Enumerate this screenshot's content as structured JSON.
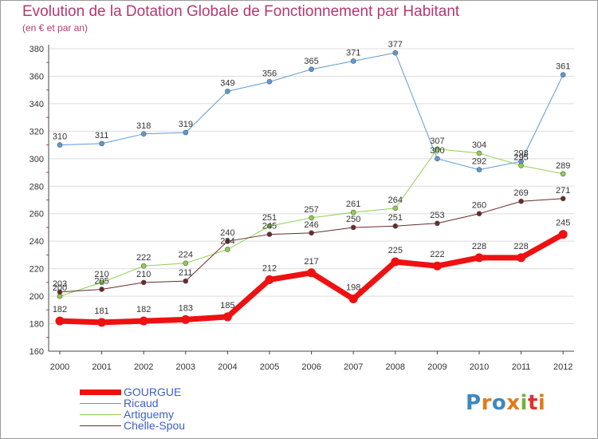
{
  "title": "Evolution de la Dotation Globale de Fonctionnement par Habitant",
  "subtitle": "(en € et par an)",
  "brand": {
    "text": "Proxiti",
    "letter_colors": [
      "#3b88c3",
      "#e07b1a",
      "#3b88c3",
      "#e07b1a",
      "#6fb53a",
      "#e0302a",
      "#e07b1a"
    ]
  },
  "colors": {
    "grid": "#dddddd",
    "axis": "#444444",
    "tick_accent": "#d04040"
  },
  "chart_data": {
    "type": "line",
    "title": "Evolution de la Dotation Globale de Fonctionnement par Habitant",
    "subtitle": "(en € et par an)",
    "xlabel": "",
    "ylabel": "",
    "categories": [
      "2000",
      "2001",
      "2002",
      "2003",
      "2004",
      "2005",
      "2006",
      "2007",
      "2008",
      "2009",
      "2010",
      "2011",
      "2012"
    ],
    "ylim": [
      160,
      380
    ],
    "yticks": [
      160,
      180,
      200,
      220,
      240,
      260,
      280,
      300,
      320,
      340,
      360,
      380
    ],
    "grid": "horizontal",
    "legend_position": "bottom-left",
    "series": [
      {
        "name": "Ricaud",
        "color": "#5b9bd5",
        "line_width": 1,
        "marker": "dot",
        "values": [
          310,
          311,
          318,
          319,
          349,
          356,
          365,
          371,
          377,
          300,
          292,
          298,
          361
        ],
        "labels": [
          "310",
          "311",
          "318",
          "319",
          "349",
          "356",
          "365",
          "371",
          "377",
          "300",
          "292",
          "298",
          "361"
        ]
      },
      {
        "name": "Artiguemy",
        "color": "#8fd04f",
        "line_width": 1,
        "marker": "dot",
        "values": [
          200,
          210,
          222,
          224,
          234,
          251,
          257,
          261,
          264,
          307,
          304,
          295,
          289
        ],
        "labels": [
          "200",
          "210",
          "222",
          "224",
          "234",
          "251",
          "257",
          "261",
          "264",
          "307",
          "304",
          "295",
          "289"
        ]
      },
      {
        "name": "Chelle-Spou",
        "color": "#6b2a2a",
        "line_width": 1,
        "marker": "dot",
        "values": [
          203,
          205,
          210,
          211,
          240,
          245,
          246,
          250,
          251,
          253,
          260,
          269,
          271
        ],
        "labels": [
          "203",
          "205",
          "210",
          "211",
          "240",
          "245",
          "246",
          "250",
          "251",
          "253",
          "260",
          "269",
          "271"
        ]
      },
      {
        "name": "GOURGUE",
        "color": "#ee1111",
        "line_width": 7,
        "marker": "big-dot",
        "values": [
          182,
          181,
          182,
          183,
          185,
          212,
          217,
          198,
          225,
          222,
          228,
          228,
          245
        ],
        "labels": [
          "182",
          "181",
          "182",
          "183",
          "185",
          "212",
          "217",
          "198",
          "225",
          "222",
          "228",
          "228",
          "245"
        ]
      }
    ],
    "legend": [
      {
        "name": "GOURGUE",
        "color": "#ee1111"
      },
      {
        "name": "Ricaud",
        "color": "#5b9bd5"
      },
      {
        "name": "Artiguemy",
        "color": "#8fd04f"
      },
      {
        "name": "Chelle-Spou",
        "color": "#6b2a2a"
      }
    ]
  }
}
